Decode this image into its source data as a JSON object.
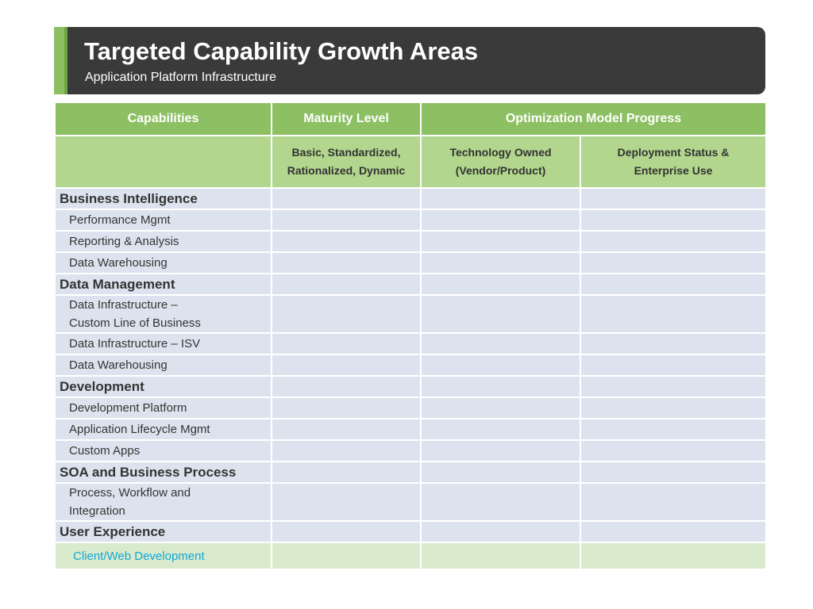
{
  "header": {
    "title": "Targeted Capability Growth Areas",
    "subtitle": "Application Platform Infrastructure"
  },
  "table": {
    "columns": {
      "capabilities": "Capabilities",
      "maturity": "Maturity Level",
      "optimization": "Optimization Model Progress"
    },
    "subheaders": {
      "maturity_line1": "Basic, Standardized,",
      "maturity_line2": "Rationalized, Dynamic",
      "technology_line1": "Technology Owned",
      "technology_line2": "(Vendor/Product)",
      "deployment_line1": "Deployment Status &",
      "deployment_line2": "Enterprise Use"
    },
    "rows": [
      {
        "type": "category",
        "label": "Business Intelligence"
      },
      {
        "type": "item",
        "label": "Performance Mgmt"
      },
      {
        "type": "item",
        "label": "Reporting & Analysis"
      },
      {
        "type": "item",
        "label": "Data Warehousing"
      },
      {
        "type": "category",
        "label": "Data Management"
      },
      {
        "type": "item2",
        "line1": "Data Infrastructure –",
        "line2": "Custom Line of Business"
      },
      {
        "type": "item",
        "label": "Data Infrastructure –  ISV"
      },
      {
        "type": "item",
        "label": "Data Warehousing"
      },
      {
        "type": "category",
        "label": "Development"
      },
      {
        "type": "item",
        "label": "Development Platform"
      },
      {
        "type": "item",
        "label": "Application Lifecycle Mgmt"
      },
      {
        "type": "item",
        "label": "Custom Apps"
      },
      {
        "type": "category",
        "label": "SOA and Business Process"
      },
      {
        "type": "item2",
        "line1": "Process, Workflow and",
        "line2": "Integration"
      },
      {
        "type": "category",
        "label": "User Experience"
      },
      {
        "type": "last",
        "label": "Client/Web Development"
      }
    ]
  }
}
